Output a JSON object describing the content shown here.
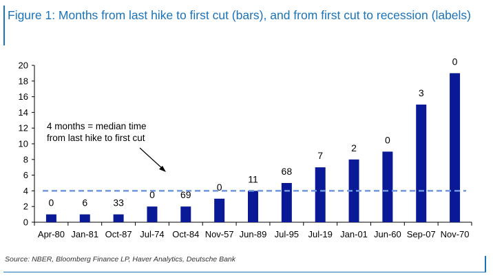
{
  "title": "Figure 1: Months from last hike to first cut (bars), and from first cut to recession (labels)",
  "source": "Source: NBER, Bloomberg Finance LP, Haver Analytics, Deutsche Bank",
  "colors": {
    "bar": "#0a1a96",
    "median_line": "#6f97de",
    "title": "#1a73b8"
  },
  "chart_data": {
    "type": "bar",
    "title": "Figure 1: Months from last hike to first cut (bars), and from first cut to recession (labels)",
    "xlabel": "",
    "ylabel": "",
    "categories": [
      "Apr-80",
      "Jan-81",
      "Oct-87",
      "Jul-74",
      "Oct-84",
      "Nov-57",
      "Jun-89",
      "Jul-95",
      "Jul-19",
      "Jan-01",
      "Jun-60",
      "Sep-07",
      "Nov-70"
    ],
    "series": [
      {
        "values": [
          1,
          1,
          1,
          2,
          2,
          3,
          4,
          5,
          7,
          8,
          9,
          15,
          19
        ]
      }
    ],
    "data_labels": [
      "0",
      "6",
      "33",
      "0",
      "69",
      "0",
      "11",
      "68",
      "7",
      "2",
      "0",
      "3",
      "0"
    ],
    "ylim": [
      0,
      20
    ],
    "yticks": [
      0,
      2,
      4,
      6,
      8,
      10,
      12,
      14,
      16,
      18,
      20
    ],
    "median_line": 4,
    "annotation": [
      "4 months = median time",
      "from last hike to first cut"
    ],
    "grid": false,
    "legend": "none"
  }
}
